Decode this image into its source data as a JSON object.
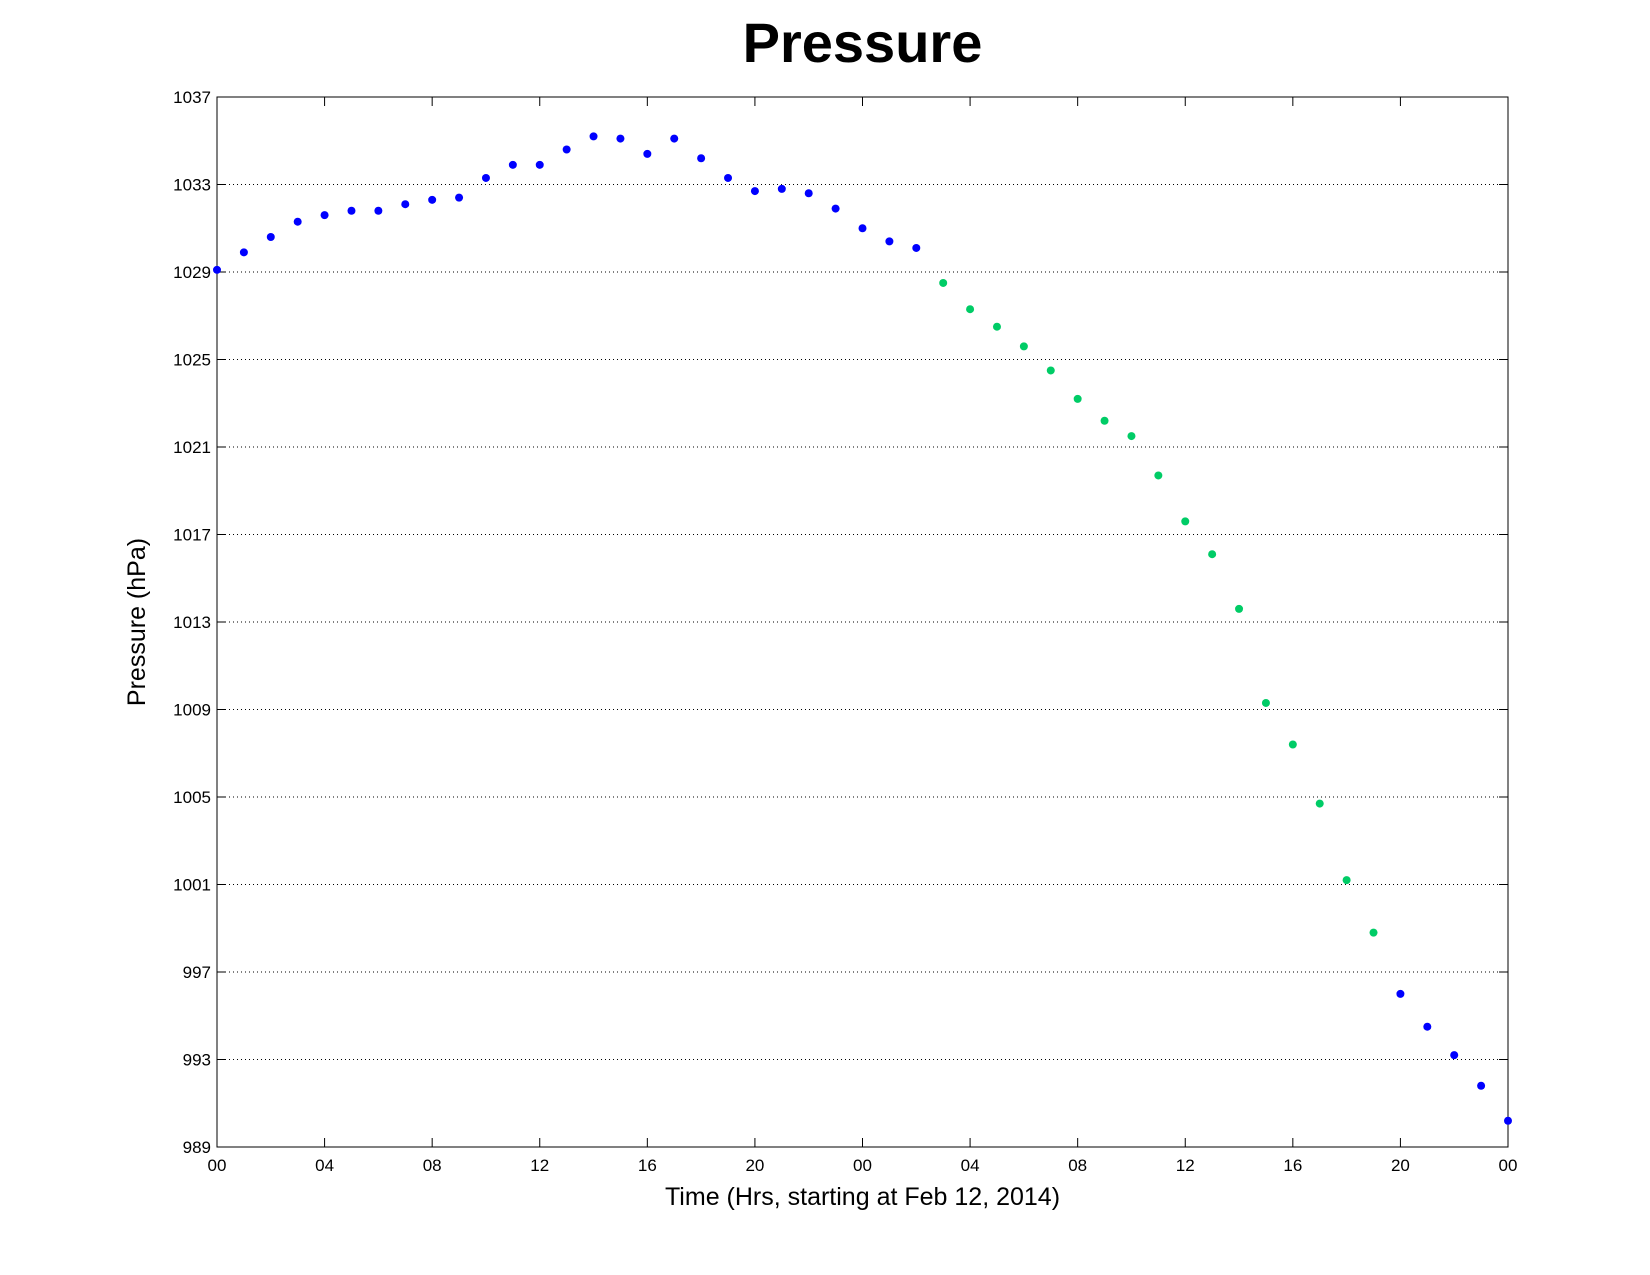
{
  "chart_data": {
    "type": "scatter",
    "title": "Pressure",
    "xlabel": "Time (Hrs, starting at Feb 12, 2014)",
    "ylabel": "Pressure (hPa)",
    "xlim": [
      0,
      48
    ],
    "ylim": [
      989,
      1037
    ],
    "x_ticks": [
      {
        "x": 0,
        "label": "00"
      },
      {
        "x": 4,
        "label": "04"
      },
      {
        "x": 8,
        "label": "08"
      },
      {
        "x": 12,
        "label": "12"
      },
      {
        "x": 16,
        "label": "16"
      },
      {
        "x": 20,
        "label": "20"
      },
      {
        "x": 24,
        "label": "00"
      },
      {
        "x": 28,
        "label": "04"
      },
      {
        "x": 32,
        "label": "08"
      },
      {
        "x": 36,
        "label": "12"
      },
      {
        "x": 40,
        "label": "16"
      },
      {
        "x": 44,
        "label": "20"
      },
      {
        "x": 48,
        "label": "00"
      }
    ],
    "y_ticks": [
      989,
      993,
      997,
      1001,
      1005,
      1009,
      1013,
      1017,
      1021,
      1025,
      1029,
      1033,
      1037
    ],
    "grid": "horizontal-dotted",
    "colors": {
      "blue": "#0000ff",
      "green": "#00cc66"
    },
    "series": [
      {
        "color": "#0000ff",
        "points": [
          [
            0,
            1029.1
          ],
          [
            1,
            1029.9
          ],
          [
            2,
            1030.6
          ],
          [
            3,
            1031.3
          ],
          [
            4,
            1031.6
          ],
          [
            5,
            1031.8
          ],
          [
            6,
            1031.8
          ],
          [
            7,
            1032.1
          ],
          [
            8,
            1032.3
          ],
          [
            9,
            1032.4
          ],
          [
            10,
            1033.3
          ],
          [
            11,
            1033.9
          ],
          [
            12,
            1033.9
          ],
          [
            13,
            1034.6
          ],
          [
            14,
            1035.2
          ],
          [
            15,
            1035.1
          ],
          [
            16,
            1034.4
          ],
          [
            17,
            1035.1
          ],
          [
            18,
            1034.2
          ],
          [
            19,
            1033.3
          ],
          [
            20,
            1032.7
          ],
          [
            21,
            1032.8
          ],
          [
            22,
            1032.6
          ],
          [
            23,
            1031.9
          ],
          [
            24,
            1031.0
          ],
          [
            25,
            1030.4
          ],
          [
            26,
            1030.1
          ]
        ]
      },
      {
        "color": "#00cc66",
        "points": [
          [
            27,
            1028.5
          ],
          [
            28,
            1027.3
          ],
          [
            29,
            1026.5
          ],
          [
            30,
            1025.6
          ],
          [
            31,
            1024.5
          ],
          [
            32,
            1023.2
          ],
          [
            33,
            1022.2
          ],
          [
            34,
            1021.5
          ],
          [
            35,
            1019.7
          ],
          [
            36,
            1017.6
          ],
          [
            37,
            1016.1
          ],
          [
            38,
            1013.6
          ],
          [
            39,
            1009.3
          ],
          [
            40,
            1007.4
          ],
          [
            41,
            1004.7
          ],
          [
            42,
            1001.2
          ],
          [
            43,
            998.8
          ]
        ]
      },
      {
        "color": "#0000ff",
        "points": [
          [
            44,
            996.0
          ],
          [
            45,
            994.5
          ],
          [
            46,
            993.2
          ],
          [
            47,
            991.8
          ],
          [
            48,
            990.2
          ]
        ]
      }
    ]
  }
}
